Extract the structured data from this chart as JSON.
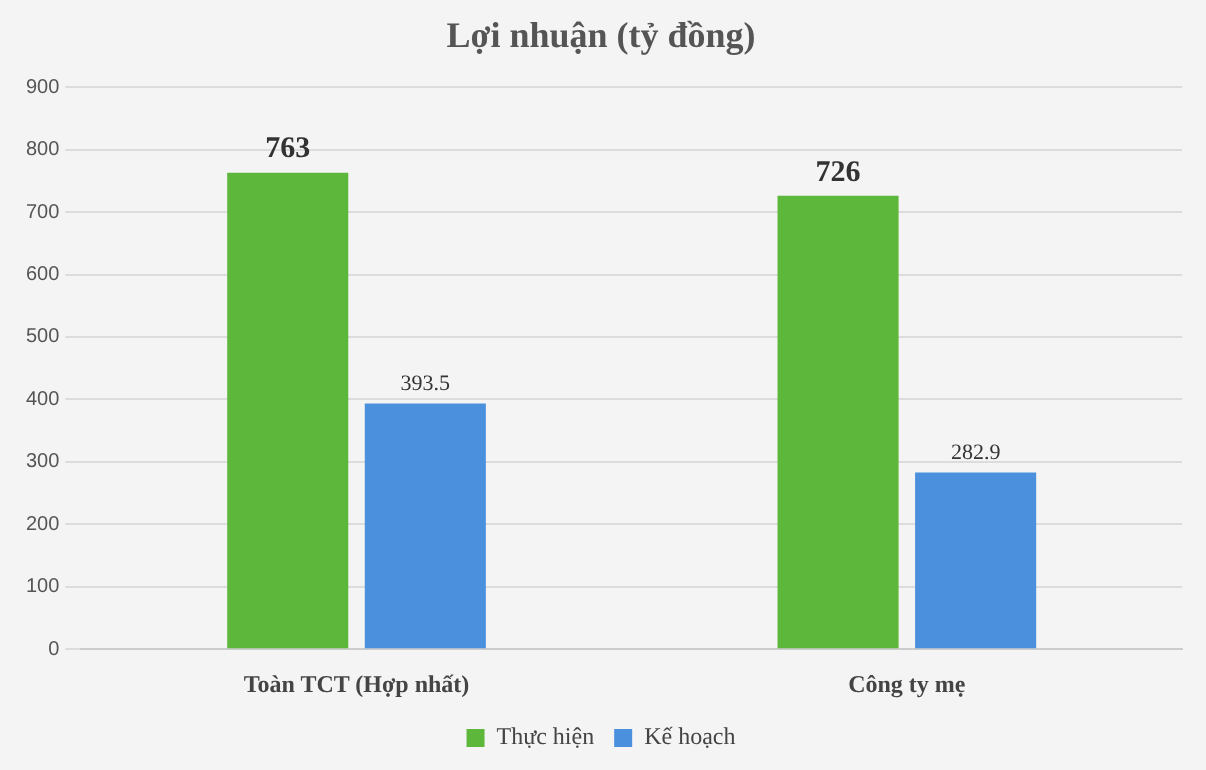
{
  "chart_data": {
    "type": "bar",
    "title": "Lợi nhuận (tỷ đồng)",
    "categories": [
      "Toàn TCT (Hợp nhất)",
      "Công ty mẹ"
    ],
    "series": [
      {
        "name": "Thực hiện",
        "color": "#5cb73b",
        "values": [
          763,
          726
        ]
      },
      {
        "name": "Kế hoạch",
        "color": "#4a90dc",
        "values": [
          393.5,
          282.9
        ]
      }
    ],
    "ylim": [
      0,
      900
    ],
    "yticks": [
      0,
      100,
      200,
      300,
      400,
      500,
      600,
      700,
      800,
      900
    ],
    "grid": "y",
    "legend": "bottom",
    "data_labels": true
  }
}
